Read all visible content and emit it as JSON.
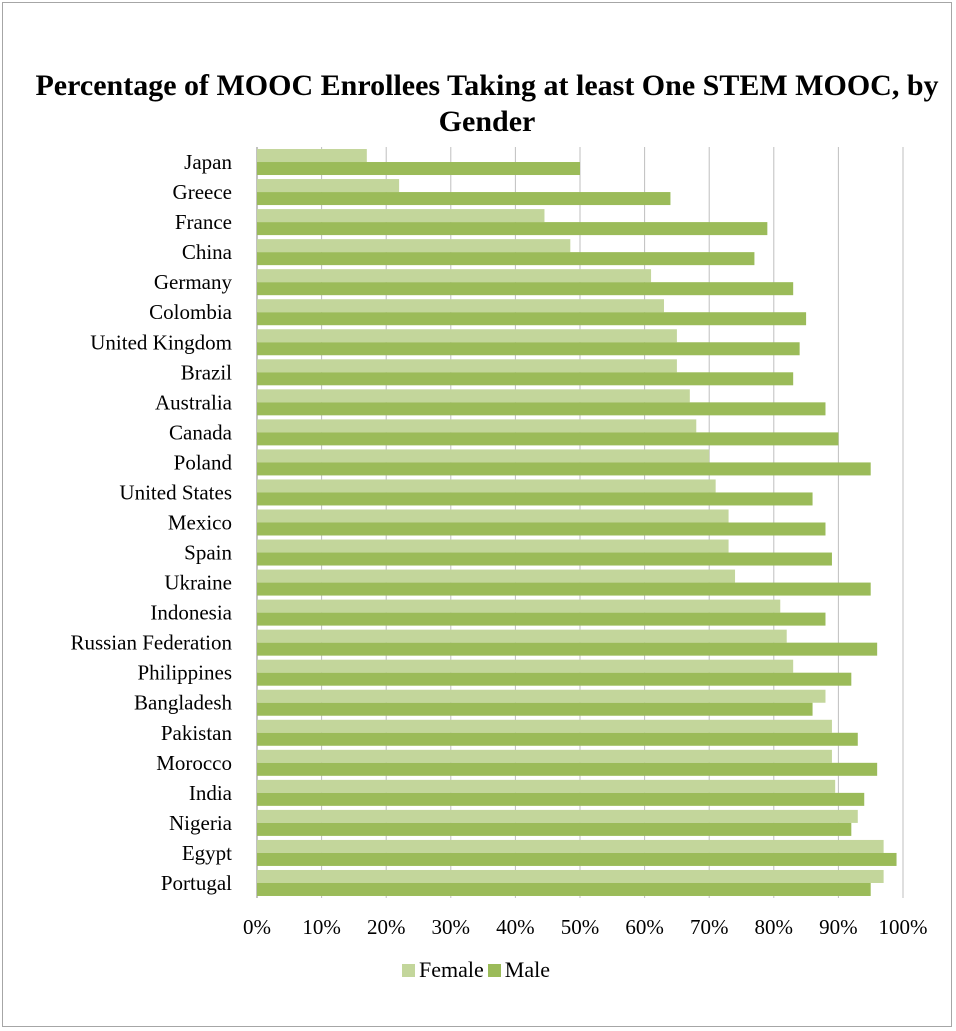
{
  "chart_data": {
    "type": "bar",
    "orientation": "horizontal",
    "title": "Percentage of MOOC Enrollees Taking at least One STEM MOOC, by Gender",
    "categories": [
      "Japan",
      "Greece",
      "France",
      "China",
      "Germany",
      "Colombia",
      "United Kingdom",
      "Brazil",
      "Australia",
      "Canada",
      "Poland",
      "United States",
      "Mexico",
      "Spain",
      "Ukraine",
      "Indonesia",
      "Russian Federation",
      "Philippines",
      "Bangladesh",
      "Pakistan",
      "Morocco",
      "India",
      "Nigeria",
      "Egypt",
      "Portugal"
    ],
    "series": [
      {
        "name": "Female",
        "color": "#c3d69b",
        "values": [
          17,
          22,
          44.5,
          48.5,
          61,
          63,
          65,
          65,
          67,
          68,
          70,
          71,
          73,
          73,
          74,
          81,
          82,
          83,
          88,
          89,
          89,
          89.5,
          93,
          97,
          97
        ]
      },
      {
        "name": "Male",
        "color": "#9bbb59",
        "values": [
          50,
          64,
          79,
          77,
          83,
          85,
          84,
          83,
          88,
          90,
          95,
          86,
          88,
          89,
          95,
          88,
          96,
          92,
          86,
          93,
          96,
          94,
          92,
          99,
          95
        ]
      }
    ],
    "xlim": [
      0,
      100
    ],
    "xticks": [
      "0%",
      "10%",
      "20%",
      "30%",
      "40%",
      "50%",
      "60%",
      "70%",
      "80%",
      "90%",
      "100%"
    ],
    "xlabel": "",
    "ylabel": "",
    "grid": true,
    "legend_position": "bottom"
  }
}
